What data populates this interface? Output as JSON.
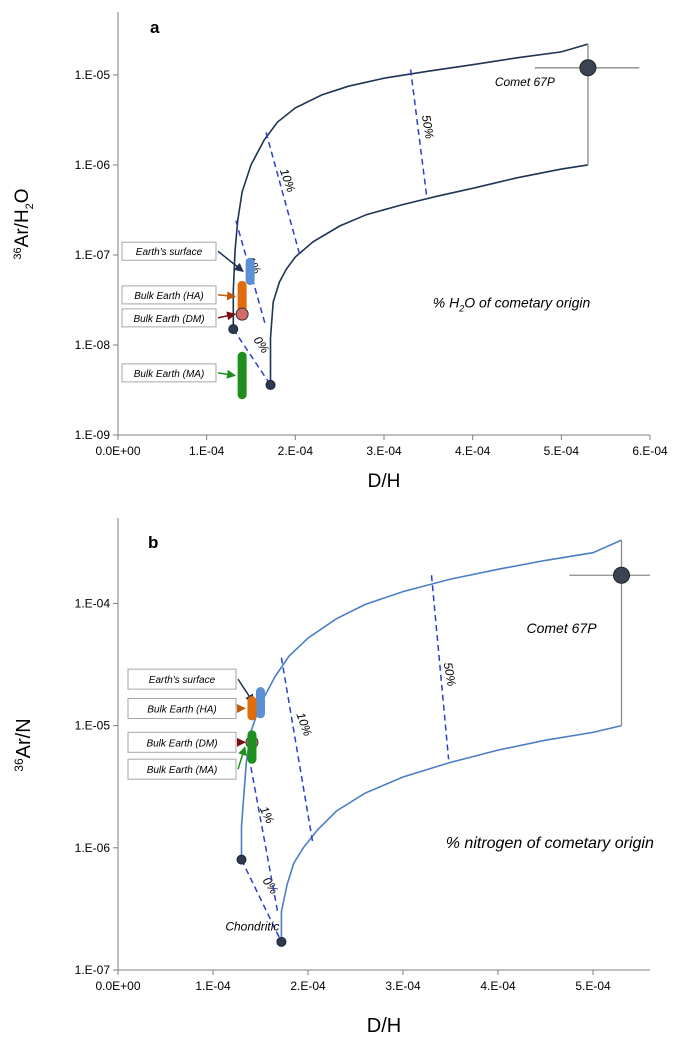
{
  "chart_data": [
    {
      "type": "line",
      "panel_label": "a",
      "xlabel": "D/H",
      "ylabel": {
        "sup": "36",
        "main": "Ar/H",
        "sub": "2",
        "tail": "O"
      },
      "xscale": "linear",
      "yscale": "log",
      "xlim": [
        0,
        0.0006
      ],
      "ylim": [
        1e-09,
        5e-05
      ],
      "xticks": [
        {
          "v": 0,
          "label": "0.0E+00"
        },
        {
          "v": 0.0001,
          "label": "1.E-04"
        },
        {
          "v": 0.0002,
          "label": "2.E-04"
        },
        {
          "v": 0.0003,
          "label": "3.E-04"
        },
        {
          "v": 0.0004,
          "label": "4.E-04"
        },
        {
          "v": 0.0005,
          "label": "5.E-04"
        },
        {
          "v": 0.0006,
          "label": "6.E-04"
        }
      ],
      "yticks": [
        {
          "v": 1e-09,
          "label": "1.E-09"
        },
        {
          "v": 1e-08,
          "label": "1.E-08"
        },
        {
          "v": 1e-07,
          "label": "1.E-07"
        },
        {
          "v": 1e-06,
          "label": "1.E-06"
        },
        {
          "v": 1e-05,
          "label": "1.E-05"
        }
      ],
      "grid": false,
      "line_color": "#1f3352",
      "mixing_curves": [
        [
          [
            0.00013,
            1.5e-08
          ],
          [
            0.00013,
            4e-08
          ],
          [
            0.000132,
            1.1e-07
          ],
          [
            0.000135,
            2.4e-07
          ],
          [
            0.00014,
            5e-07
          ],
          [
            0.00015,
            1e-06
          ],
          [
            0.000165,
            1.9e-06
          ],
          [
            0.00018,
            3e-06
          ],
          [
            0.0002,
            4.3e-06
          ],
          [
            0.00023,
            6e-06
          ],
          [
            0.00026,
            7.5e-06
          ],
          [
            0.0003,
            9.2e-06
          ],
          [
            0.00035,
            1.1e-05
          ],
          [
            0.0004,
            1.3e-05
          ],
          [
            0.00045,
            1.55e-05
          ],
          [
            0.0005,
            1.8e-05
          ],
          [
            0.00053,
            2.2e-05
          ]
        ],
        [
          [
            0.000172,
            3.6e-09
          ],
          [
            0.000172,
            1.2e-08
          ],
          [
            0.000175,
            3e-08
          ],
          [
            0.000182,
            5e-08
          ],
          [
            0.00019,
            7e-08
          ],
          [
            0.0002,
            9.5e-08
          ],
          [
            0.00022,
            1.4e-07
          ],
          [
            0.00025,
            2.1e-07
          ],
          [
            0.00028,
            2.8e-07
          ],
          [
            0.00032,
            3.6e-07
          ],
          [
            0.00036,
            4.5e-07
          ],
          [
            0.0004,
            5.5e-07
          ],
          [
            0.00045,
            7.2e-07
          ],
          [
            0.0005,
            9e-07
          ],
          [
            0.00053,
            1e-06
          ]
        ]
      ],
      "comet_segment": [
        [
          0.00053,
          1e-06
        ],
        [
          0.00053,
          2.2e-05
        ]
      ],
      "iso_lines": [
        {
          "label": "0%",
          "from": [
            0.00013,
            1.5e-08
          ],
          "to": [
            0.000172,
            3.6e-09
          ],
          "label_at": [
            0.000158,
            9.5e-09
          ],
          "angle": 55
        },
        {
          "label": "1%",
          "from": [
            0.000133,
            2.4e-07
          ],
          "to": [
            0.000166,
            1.7e-08
          ],
          "label_at": [
            0.000149,
            7.3e-08
          ],
          "angle": 60
        },
        {
          "label": "10%",
          "from": [
            0.000167,
            2.3e-06
          ],
          "to": [
            0.000205,
            1e-07
          ],
          "label_at": [
            0.000187,
            6.5e-07
          ],
          "angle": 70
        },
        {
          "label": "50%",
          "from": [
            0.00033,
            1.15e-05
          ],
          "to": [
            0.000348,
            4.6e-07
          ],
          "label_at": [
            0.000345,
            2.6e-06
          ],
          "angle": 80
        }
      ],
      "end_points": [
        [
          0.00013,
          1.5e-08
        ],
        [
          0.000172,
          3.6e-09
        ]
      ],
      "comet": {
        "label": "Comet 67P",
        "x": 0.00053,
        "y": 1.2e-05,
        "xerr": [
          0.00047,
          0.000588
        ],
        "label_at": [
          0.000425,
          7.5e-06
        ]
      },
      "reservoirs": [
        {
          "label": "Earth's surface",
          "shape": "bar",
          "x": 0.000149,
          "y": [
            5.2e-08,
            8.3e-08
          ],
          "color": "#5b8fd6",
          "arrow": "#1f3352",
          "box_y": 1.1e-07
        },
        {
          "label": "Bulk Earth (HA)",
          "shape": "bar",
          "x": 0.00014,
          "y": [
            2.6e-08,
            4.6e-08
          ],
          "color": "#e36c0a",
          "arrow": "#c0590a",
          "box_y": 3.6e-08
        },
        {
          "label": "Bulk Earth (DM)",
          "shape": "circle",
          "x": 0.00014,
          "y": [
            2.2e-08
          ],
          "color": "#d46a6a",
          "arrow": "#7a0f0f",
          "box_y": 2e-08
        },
        {
          "label": "Bulk Earth (MA)",
          "shape": "bar",
          "x": 0.00014,
          "y": [
            2.8e-09,
            7.5e-09
          ],
          "color": "#1e8f1e",
          "arrow": "#1e8f1e",
          "box_y": 4.9e-09
        }
      ],
      "annotation": {
        "pre": "% H",
        "sub": "2",
        "post": "O of cometary origin",
        "at": [
          0.000355,
          2.6e-08
        ]
      }
    },
    {
      "type": "line",
      "panel_label": "b",
      "xlabel": "D/H",
      "ylabel": {
        "sup": "36",
        "main": "Ar/N",
        "sub": "",
        "tail": ""
      },
      "xscale": "linear",
      "yscale": "log",
      "xlim": [
        0,
        0.00056
      ],
      "ylim": [
        1e-07,
        0.0005
      ],
      "xticks": [
        {
          "v": 0,
          "label": "0.0E+00"
        },
        {
          "v": 0.0001,
          "label": "1.E-04"
        },
        {
          "v": 0.0002,
          "label": "2.E-04"
        },
        {
          "v": 0.0003,
          "label": "3.E-04"
        },
        {
          "v": 0.0004,
          "label": "4.E-04"
        },
        {
          "v": 0.0005,
          "label": "5.E-04"
        }
      ],
      "yticks": [
        {
          "v": 1e-07,
          "label": "1.E-07"
        },
        {
          "v": 1e-06,
          "label": "1.E-06"
        },
        {
          "v": 1e-05,
          "label": "1.E-05"
        },
        {
          "v": 0.0001,
          "label": "1.E-04"
        }
      ],
      "grid": false,
      "line_color": "#4a7fc4",
      "mixing_curves": [
        [
          [
            0.00013,
            8e-07
          ],
          [
            0.00013,
            1.5e-06
          ],
          [
            0.000135,
            5e-06
          ],
          [
            0.00014,
            9e-06
          ],
          [
            0.00015,
            1.5e-05
          ],
          [
            0.000165,
            2.5e-05
          ],
          [
            0.00018,
            3.7e-05
          ],
          [
            0.0002,
            5.2e-05
          ],
          [
            0.00023,
            7.5e-05
          ],
          [
            0.00026,
            9.8e-05
          ],
          [
            0.0003,
            0.000125
          ],
          [
            0.00035,
            0.000158
          ],
          [
            0.0004,
            0.00019
          ],
          [
            0.00045,
            0.000225
          ],
          [
            0.0005,
            0.00026
          ],
          [
            0.00053,
            0.00033
          ]
        ],
        [
          [
            0.000172,
            1.7e-07
          ],
          [
            0.000172,
            3e-07
          ],
          [
            0.000178,
            5e-07
          ],
          [
            0.000185,
            7.5e-07
          ],
          [
            0.000195,
            1e-06
          ],
          [
            0.00021,
            1.4e-06
          ],
          [
            0.00023,
            2e-06
          ],
          [
            0.00026,
            2.8e-06
          ],
          [
            0.0003,
            3.8e-06
          ],
          [
            0.00035,
            5e-06
          ],
          [
            0.0004,
            6.3e-06
          ],
          [
            0.00045,
            7.6e-06
          ],
          [
            0.0005,
            8.8e-06
          ],
          [
            0.00053,
            1e-05
          ]
        ]
      ],
      "comet_segment": [
        [
          0.00053,
          1e-05
        ],
        [
          0.00053,
          0.00033
        ]
      ],
      "iso_lines": [
        {
          "label": "0%",
          "from": [
            0.00013,
            8e-07
          ],
          "to": [
            0.000172,
            1.7e-07
          ],
          "label_at": [
            0.000157,
            4.7e-07
          ],
          "angle": 55
        },
        {
          "label": "1%",
          "from": [
            0.000138,
            5.5e-06
          ],
          "to": [
            0.000168,
            3e-07
          ],
          "label_at": [
            0.000153,
            1.8e-06
          ],
          "angle": 65
        },
        {
          "label": "10%",
          "from": [
            0.000172,
            3.6e-05
          ],
          "to": [
            0.000205,
            1.1e-06
          ],
          "label_at": [
            0.000192,
            1e-05
          ],
          "angle": 70
        },
        {
          "label": "50%",
          "from": [
            0.00033,
            0.00017
          ],
          "to": [
            0.000348,
            5.3e-06
          ],
          "label_at": [
            0.000345,
            2.6e-05
          ],
          "angle": 80
        }
      ],
      "end_points": [
        [
          0.00013,
          8e-07
        ],
        [
          0.000172,
          1.7e-07
        ]
      ],
      "comet": {
        "label": "Comet 67P",
        "x": 0.00053,
        "y": 0.00017,
        "xerr": [
          0.000475,
          0.00056
        ],
        "label_at": [
          0.00043,
          5.7e-05
        ]
      },
      "reservoirs": [
        {
          "label": "Earth's surface",
          "shape": "bar",
          "x": 0.00015,
          "y": [
            1.25e-05,
            1.9e-05
          ],
          "color": "#5b8fd6",
          "arrow": "#1f3352",
          "box_y": 2.4e-05
        },
        {
          "label": "Bulk Earth (HA)",
          "shape": "bar",
          "x": 0.000141,
          "y": [
            1.2e-05,
            1.6e-05
          ],
          "color": "#e36c0a",
          "arrow": "#c0590a",
          "box_y": 1.38e-05
        },
        {
          "label": "Bulk Earth (DM)",
          "shape": "circle",
          "x": 0.000141,
          "y": [
            7.3e-06
          ],
          "color": "#d46a6a",
          "arrow": "#7a0f0f",
          "box_y": 7.3e-06
        },
        {
          "label": "Bulk Earth (MA)",
          "shape": "bar",
          "x": 0.000141,
          "y": [
            5.3e-06,
            8.4e-06
          ],
          "color": "#1e8f1e",
          "arrow": "#1e8f1e",
          "box_y": 4.4e-06
        }
      ],
      "extra_labels": [
        {
          "text": "Chondritic",
          "at": [
            0.000113,
            2.1e-07
          ]
        }
      ],
      "annotation": {
        "pre": "% nitrogen of cometary origin",
        "sub": "",
        "post": "",
        "at": [
          0.000345,
          1e-06
        ]
      }
    }
  ]
}
